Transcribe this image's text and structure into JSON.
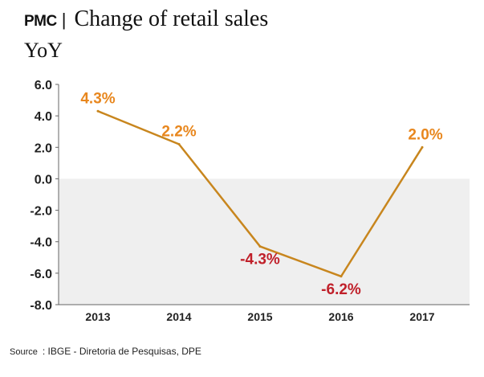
{
  "header": {
    "brand": "PMC",
    "separator": "|",
    "title": "Change of retail sales",
    "subtitle": "YoY"
  },
  "source": {
    "label": "Source",
    "text": ": IBGE - Diretoria de Pesquisas, DPE"
  },
  "colors": {
    "line": "#c8861e",
    "positive_label": "#e8871e",
    "negative_label": "#c0202a",
    "negative_band": "#efefef",
    "axis": "#666666"
  },
  "chart_data": {
    "type": "line",
    "title": "Change of retail sales",
    "ylabel": "YoY",
    "xlabel": "",
    "categories": [
      "2013",
      "2014",
      "2015",
      "2016",
      "2017"
    ],
    "values": [
      4.3,
      2.2,
      -4.3,
      -6.2,
      2.0
    ],
    "data_labels": [
      "4.3%",
      "2.2%",
      "-4.3%",
      "-6.2%",
      "2.0%"
    ],
    "ylim": [
      -8.0,
      6.0
    ],
    "yticks": [
      "6.0",
      "4.0",
      "2.0",
      "0.0",
      "-2.0",
      "-4.0",
      "-6.0",
      "-8.0"
    ],
    "grid": false,
    "shaded_negative_region": true
  }
}
